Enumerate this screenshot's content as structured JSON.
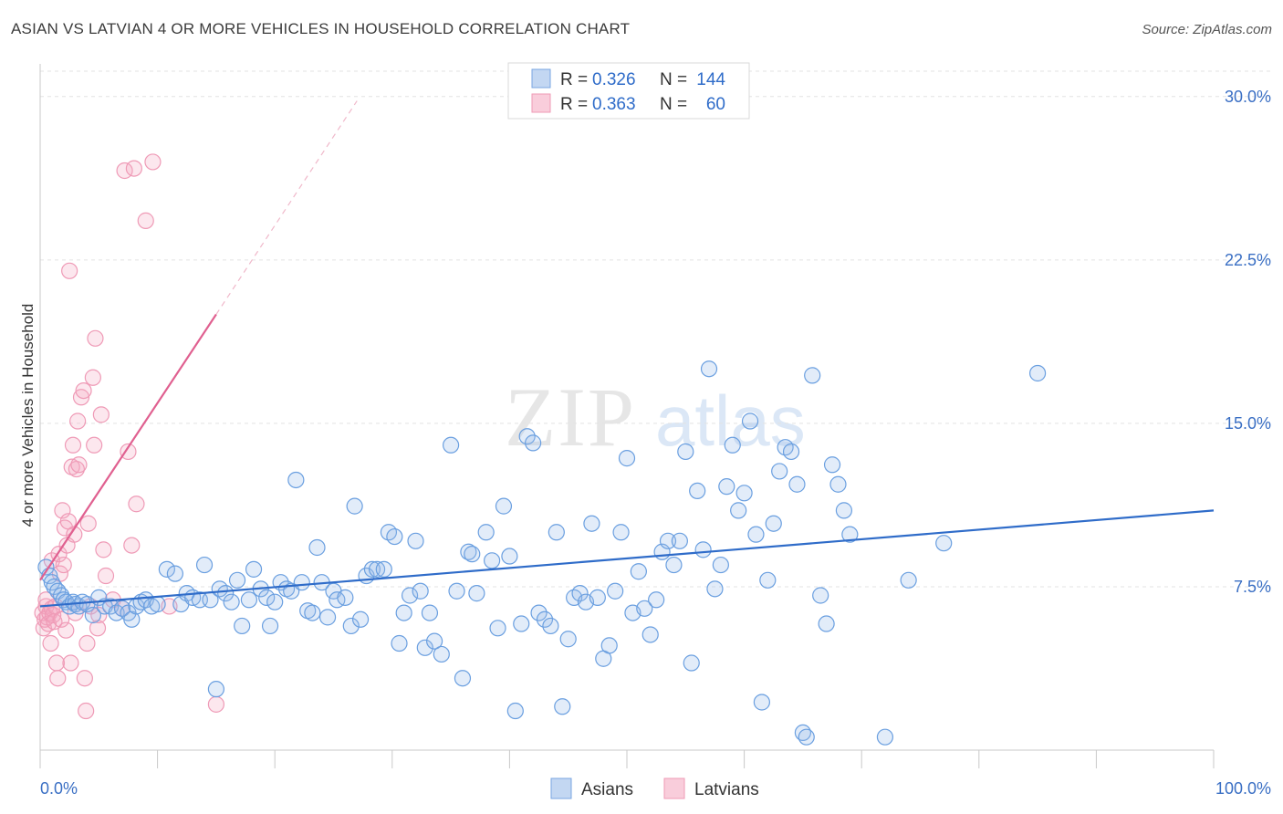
{
  "title": "ASIAN VS LATVIAN 4 OR MORE VEHICLES IN HOUSEHOLD CORRELATION CHART",
  "source": "Source: ZipAtlas.com",
  "watermark": {
    "zip": "ZIP",
    "atlas": "atlas"
  },
  "legend": {
    "rows": [
      {
        "r_label": "R =",
        "r_value": "0.326",
        "n_label": "N =",
        "n_value": "144"
      },
      {
        "r_label": "R =",
        "r_value": "0.363",
        "n_label": "N =",
        "n_value": "60"
      }
    ]
  },
  "bottom_legend": {
    "asians": "Asians",
    "latvians": "Latvians"
  },
  "chart_data": {
    "type": "scatter",
    "title": "ASIAN VS LATVIAN 4 OR MORE VEHICLES IN HOUSEHOLD CORRELATION CHART",
    "xlabel": "",
    "ylabel": "4 or more Vehicles in Household",
    "x_tick_labels": [
      "0.0%",
      "100.0%"
    ],
    "y_tick_labels": [
      "7.5%",
      "15.0%",
      "22.5%",
      "30.0%"
    ],
    "y_ticks": [
      7.5,
      15.0,
      22.5,
      30.0
    ],
    "xlim": [
      0,
      100
    ],
    "ylim": [
      0,
      31.5
    ],
    "grid": true,
    "legend_position": "top-center",
    "colors": {
      "asians": "#6a9fe0",
      "asians_line": "#2f6cc9",
      "latvians": "#ee8fae",
      "latvians_line": "#e06090"
    },
    "series": [
      {
        "name": "Asians",
        "r": 0.326,
        "n": 144,
        "trend": {
          "x0": 0,
          "y0": 6.6,
          "x1": 100,
          "y1": 11.0
        },
        "points": [
          [
            0.5,
            8.4
          ],
          [
            0.8,
            8.0
          ],
          [
            1.0,
            7.7
          ],
          [
            1.2,
            7.5
          ],
          [
            1.5,
            7.3
          ],
          [
            1.8,
            7.1
          ],
          [
            2.0,
            6.9
          ],
          [
            2.2,
            6.8
          ],
          [
            2.5,
            6.6
          ],
          [
            2.8,
            6.8
          ],
          [
            3.0,
            6.7
          ],
          [
            3.3,
            6.6
          ],
          [
            3.6,
            6.8
          ],
          [
            4.0,
            6.7
          ],
          [
            4.5,
            6.2
          ],
          [
            5.0,
            7.0
          ],
          [
            5.5,
            6.6
          ],
          [
            6.0,
            6.6
          ],
          [
            6.5,
            6.3
          ],
          [
            7.0,
            6.5
          ],
          [
            7.5,
            6.3
          ],
          [
            7.8,
            6.0
          ],
          [
            8.2,
            6.6
          ],
          [
            8.6,
            6.8
          ],
          [
            9.0,
            6.9
          ],
          [
            9.5,
            6.6
          ],
          [
            10.0,
            6.7
          ],
          [
            10.8,
            8.3
          ],
          [
            11.5,
            8.1
          ],
          [
            12.0,
            6.7
          ],
          [
            12.5,
            7.2
          ],
          [
            13.0,
            7.0
          ],
          [
            13.6,
            6.9
          ],
          [
            14.0,
            8.5
          ],
          [
            14.5,
            6.9
          ],
          [
            15.0,
            2.8
          ],
          [
            15.3,
            7.4
          ],
          [
            15.8,
            7.2
          ],
          [
            16.3,
            6.8
          ],
          [
            16.8,
            7.8
          ],
          [
            17.2,
            5.7
          ],
          [
            17.8,
            6.9
          ],
          [
            18.2,
            8.3
          ],
          [
            18.8,
            7.4
          ],
          [
            19.3,
            7.0
          ],
          [
            19.6,
            5.7
          ],
          [
            20.0,
            6.8
          ],
          [
            20.5,
            7.7
          ],
          [
            21.0,
            7.4
          ],
          [
            21.4,
            7.3
          ],
          [
            21.8,
            12.4
          ],
          [
            22.3,
            7.7
          ],
          [
            22.8,
            6.4
          ],
          [
            23.2,
            6.3
          ],
          [
            23.6,
            9.3
          ],
          [
            24.0,
            7.7
          ],
          [
            24.5,
            6.1
          ],
          [
            25.0,
            7.3
          ],
          [
            25.3,
            6.9
          ],
          [
            26.0,
            7.0
          ],
          [
            26.5,
            5.7
          ],
          [
            26.8,
            11.2
          ],
          [
            27.3,
            6.0
          ],
          [
            27.8,
            8.0
          ],
          [
            28.3,
            8.3
          ],
          [
            28.7,
            8.3
          ],
          [
            29.3,
            8.3
          ],
          [
            29.7,
            10.0
          ],
          [
            30.2,
            9.8
          ],
          [
            30.6,
            4.9
          ],
          [
            31.0,
            6.3
          ],
          [
            31.5,
            7.1
          ],
          [
            32.0,
            9.6
          ],
          [
            32.4,
            7.3
          ],
          [
            32.8,
            4.7
          ],
          [
            33.2,
            6.3
          ],
          [
            33.6,
            5.0
          ],
          [
            34.2,
            4.4
          ],
          [
            35.0,
            14.0
          ],
          [
            35.5,
            7.3
          ],
          [
            36.0,
            3.3
          ],
          [
            36.5,
            9.1
          ],
          [
            36.8,
            9.0
          ],
          [
            37.2,
            7.2
          ],
          [
            38.0,
            10.0
          ],
          [
            38.5,
            8.7
          ],
          [
            39.0,
            5.6
          ],
          [
            39.5,
            11.2
          ],
          [
            40.0,
            8.9
          ],
          [
            40.5,
            1.8
          ],
          [
            41.0,
            5.8
          ],
          [
            41.5,
            14.4
          ],
          [
            42.0,
            14.1
          ],
          [
            42.5,
            6.3
          ],
          [
            43.0,
            6.0
          ],
          [
            43.5,
            5.7
          ],
          [
            44.0,
            10.0
          ],
          [
            44.5,
            2.0
          ],
          [
            45.0,
            5.1
          ],
          [
            45.5,
            7.0
          ],
          [
            46.0,
            7.2
          ],
          [
            46.5,
            6.8
          ],
          [
            47.0,
            10.4
          ],
          [
            47.5,
            7.0
          ],
          [
            48.0,
            4.2
          ],
          [
            48.5,
            4.8
          ],
          [
            49.0,
            7.3
          ],
          [
            49.5,
            10.0
          ],
          [
            50.0,
            13.4
          ],
          [
            50.5,
            6.3
          ],
          [
            51.0,
            8.2
          ],
          [
            51.5,
            6.5
          ],
          [
            52.0,
            5.3
          ],
          [
            52.5,
            6.9
          ],
          [
            53.0,
            9.1
          ],
          [
            53.5,
            9.6
          ],
          [
            54.0,
            8.5
          ],
          [
            54.5,
            9.6
          ],
          [
            55.0,
            13.7
          ],
          [
            55.5,
            4.0
          ],
          [
            56.0,
            11.9
          ],
          [
            56.5,
            9.2
          ],
          [
            57.0,
            17.5
          ],
          [
            57.5,
            7.4
          ],
          [
            58.0,
            8.5
          ],
          [
            58.5,
            12.1
          ],
          [
            59.0,
            14.0
          ],
          [
            59.5,
            11.0
          ],
          [
            60.0,
            11.8
          ],
          [
            60.5,
            15.1
          ],
          [
            61.0,
            9.9
          ],
          [
            61.5,
            2.2
          ],
          [
            62.0,
            7.8
          ],
          [
            62.5,
            10.4
          ],
          [
            63.0,
            12.8
          ],
          [
            63.5,
            13.9
          ],
          [
            64.0,
            13.7
          ],
          [
            64.5,
            12.2
          ],
          [
            65.0,
            0.8
          ],
          [
            65.3,
            0.6
          ],
          [
            65.8,
            17.2
          ],
          [
            66.5,
            7.1
          ],
          [
            67.0,
            5.8
          ],
          [
            67.5,
            13.1
          ],
          [
            68.0,
            12.2
          ],
          [
            68.5,
            11.0
          ],
          [
            69.0,
            9.9
          ],
          [
            72.0,
            0.6
          ],
          [
            74.0,
            7.8
          ],
          [
            77.0,
            9.5
          ],
          [
            85.0,
            17.3
          ]
        ]
      },
      {
        "name": "Latvians",
        "r": 0.363,
        "n": 60,
        "trend": {
          "x0": 0,
          "y0": 7.8,
          "x1": 15,
          "y1": 20.0
        },
        "trend_dashed": {
          "x0": 15,
          "y0": 20.0,
          "x1": 27,
          "y1": 29.8
        },
        "points": [
          [
            0.2,
            6.3
          ],
          [
            0.3,
            5.6
          ],
          [
            0.4,
            6.0
          ],
          [
            0.5,
            6.6
          ],
          [
            0.5,
            6.9
          ],
          [
            0.6,
            6.1
          ],
          [
            0.7,
            5.8
          ],
          [
            0.8,
            6.3
          ],
          [
            0.9,
            4.9
          ],
          [
            1.0,
            6.5
          ],
          [
            1.0,
            8.7
          ],
          [
            1.1,
            6.2
          ],
          [
            1.2,
            5.9
          ],
          [
            1.3,
            6.6
          ],
          [
            1.4,
            4.0
          ],
          [
            1.5,
            3.3
          ],
          [
            1.6,
            9.0
          ],
          [
            1.7,
            8.1
          ],
          [
            1.8,
            6.0
          ],
          [
            1.9,
            11.0
          ],
          [
            2.0,
            8.5
          ],
          [
            2.1,
            10.2
          ],
          [
            2.2,
            5.5
          ],
          [
            2.3,
            9.4
          ],
          [
            2.4,
            10.5
          ],
          [
            2.5,
            22.0
          ],
          [
            2.6,
            4.0
          ],
          [
            2.7,
            13.0
          ],
          [
            2.8,
            14.0
          ],
          [
            2.9,
            9.9
          ],
          [
            3.0,
            6.3
          ],
          [
            3.1,
            12.9
          ],
          [
            3.2,
            15.1
          ],
          [
            3.3,
            13.1
          ],
          [
            3.5,
            16.2
          ],
          [
            3.7,
            16.5
          ],
          [
            3.8,
            3.3
          ],
          [
            3.9,
            1.8
          ],
          [
            4.0,
            4.9
          ],
          [
            4.1,
            10.4
          ],
          [
            4.3,
            6.6
          ],
          [
            4.5,
            17.1
          ],
          [
            4.6,
            14.0
          ],
          [
            4.7,
            18.9
          ],
          [
            4.9,
            5.6
          ],
          [
            5.0,
            6.2
          ],
          [
            5.2,
            15.4
          ],
          [
            5.4,
            9.2
          ],
          [
            5.6,
            8.0
          ],
          [
            6.2,
            6.9
          ],
          [
            7.0,
            6.5
          ],
          [
            7.5,
            13.7
          ],
          [
            7.8,
            9.4
          ],
          [
            8.2,
            11.3
          ],
          [
            7.2,
            26.6
          ],
          [
            8.0,
            26.7
          ],
          [
            9.0,
            24.3
          ],
          [
            9.6,
            27.0
          ],
          [
            15.0,
            2.1
          ],
          [
            11.0,
            6.6
          ]
        ]
      }
    ]
  }
}
